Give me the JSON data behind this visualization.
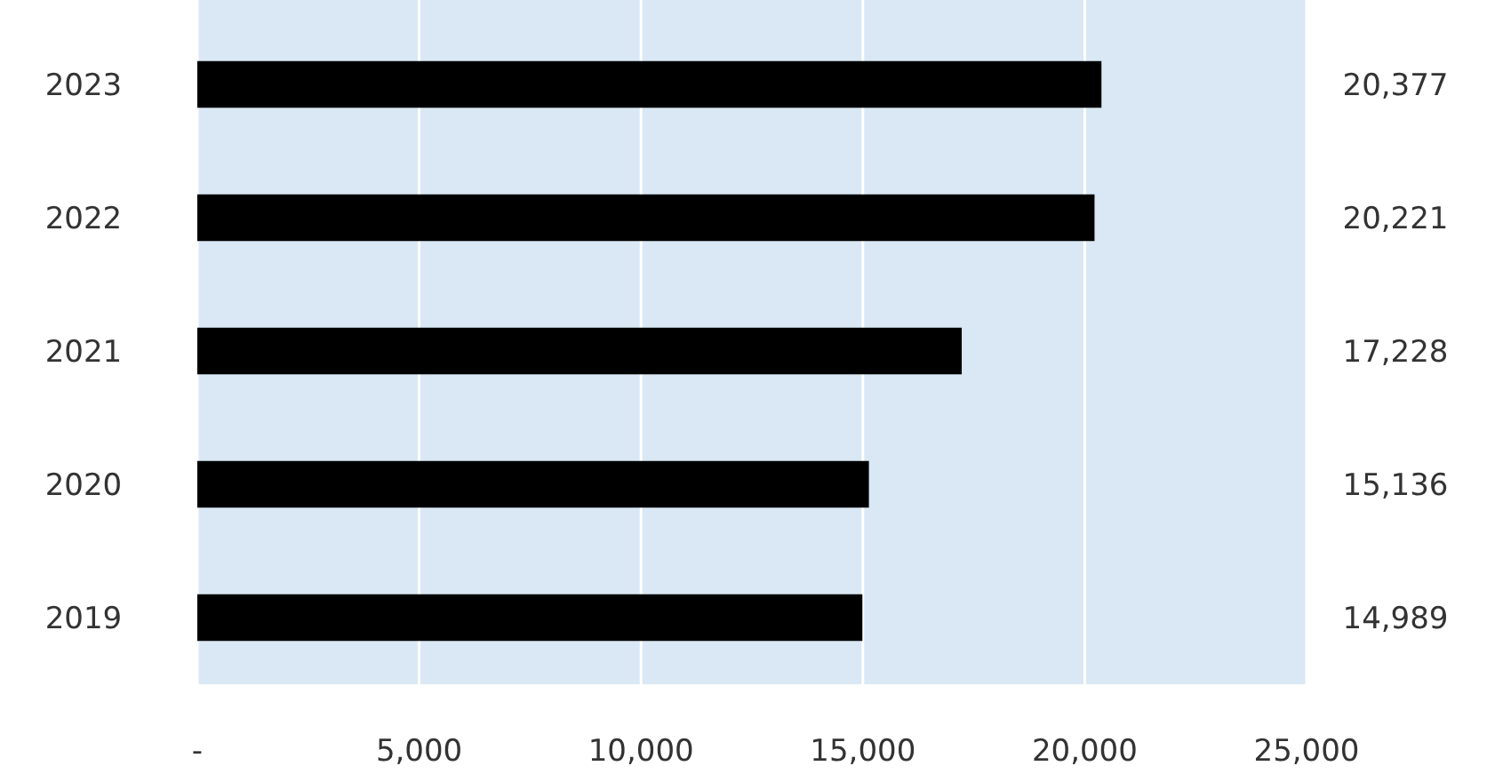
{
  "chart_data": {
    "type": "bar",
    "orientation": "horizontal",
    "categories": [
      "2023",
      "2022",
      "2021",
      "2020",
      "2019"
    ],
    "values": [
      20377,
      20221,
      17228,
      15136,
      14989
    ],
    "color": "#000000",
    "xlim": [
      0,
      25000
    ],
    "xticks": [
      {
        "value": 0,
        "label": "-"
      },
      {
        "value": 5000,
        "label": "5,000"
      },
      {
        "value": 10000,
        "label": "10,000"
      },
      {
        "value": 15000,
        "label": "15,000"
      },
      {
        "value": 20000,
        "label": "20,000"
      },
      {
        "value": 25000,
        "label": "25,000"
      }
    ],
    "grid": "x",
    "value_labels": [
      "20,377",
      "20,221",
      "17,228",
      "15,136",
      "14,989"
    ]
  }
}
